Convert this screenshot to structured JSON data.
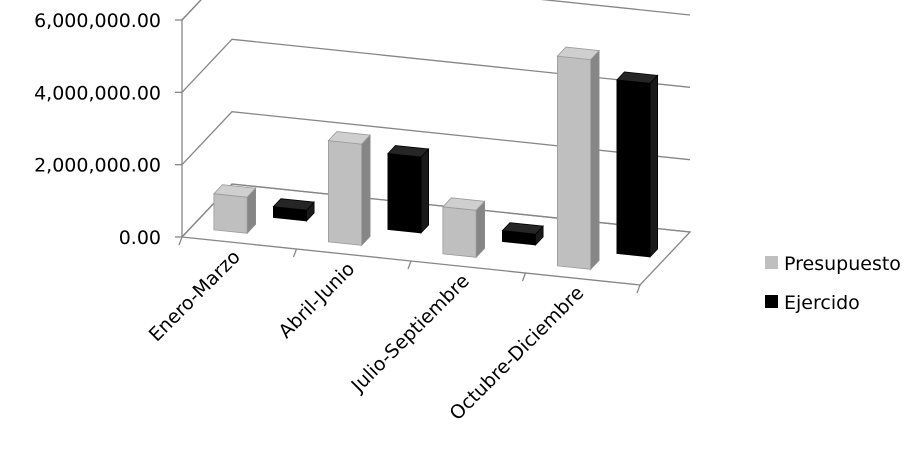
{
  "chart_data": {
    "type": "bar",
    "title": "",
    "xlabel": "",
    "ylabel": "",
    "categories": [
      "Enero-Marzo",
      "Abril-Junio",
      "Julio-Septiembre",
      "Octubre-Diciembre"
    ],
    "series": [
      {
        "name": "Presupuesto",
        "color": "#BFBFBF",
        "values": [
          1000000,
          2800000,
          1300000,
          5800000
        ]
      },
      {
        "name": "Ejercido",
        "color": "#000000",
        "values": [
          300000,
          2100000,
          300000,
          4800000
        ]
      }
    ],
    "ylim": [
      0,
      6000000
    ],
    "yticks": [
      "0.00",
      "2,000,000.00",
      "4,000,000.00",
      "6,000,000.00"
    ],
    "grid": true,
    "legend_position": "right",
    "style": "3d-clustered-column"
  }
}
